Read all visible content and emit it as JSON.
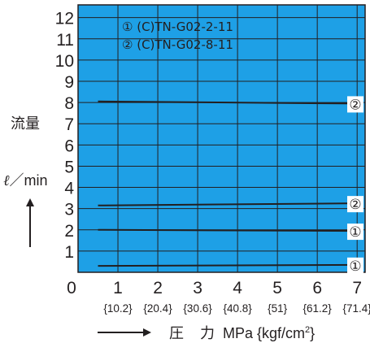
{
  "chart_data": {
    "type": "line",
    "x_ticks": [
      "1",
      "2",
      "3",
      "4",
      "5",
      "6",
      "7"
    ],
    "x_ticks_alt": [
      "{10.2}",
      "{20.4}",
      "{30.6}",
      "{40.8}",
      "{51}",
      "{61.2}",
      "{71.4}"
    ],
    "y_ticks": [
      "0",
      "1",
      "2",
      "3",
      "4",
      "5",
      "6",
      "7",
      "8",
      "9",
      "10",
      "11",
      "12"
    ],
    "xlim": [
      0,
      7.2
    ],
    "ylim": [
      0,
      12.6
    ],
    "grid": true,
    "origin_label": "0",
    "ylabel": {
      "title": "流量",
      "unit_prefix": "ℓ",
      "unit": "／min"
    },
    "xlabel": {
      "title_a": "圧",
      "title_b": "力",
      "unit": "MPa {kgf/cm",
      "sup": "2",
      "tail": "}"
    },
    "legend": {
      "placement": "top-center",
      "entries": [
        "① (C)TN-G02-2-11",
        "② (C)TN-G02-8-11"
      ]
    },
    "series": [
      {
        "marker": "②",
        "x": [
          0.5,
          7.0
        ],
        "y": [
          8.05,
          7.95
        ]
      },
      {
        "marker": "②",
        "x": [
          0.5,
          7.0
        ],
        "y": [
          3.15,
          3.25
        ]
      },
      {
        "marker": "①",
        "x": [
          0.5,
          7.0
        ],
        "y": [
          2.0,
          1.95
        ]
      },
      {
        "marker": "①",
        "x": [
          0.5,
          7.0
        ],
        "y": [
          0.3,
          0.35
        ]
      }
    ],
    "colors": {
      "plot_bg": "#1ea0e6",
      "grid": "#231f20",
      "line": "#231f20",
      "marker_bg": "#ffffff"
    }
  }
}
